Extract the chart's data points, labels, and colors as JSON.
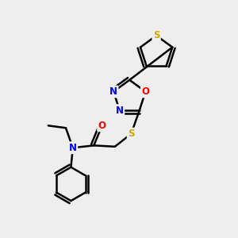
{
  "bg_color": "#eeeeee",
  "atom_colors": {
    "C": "#000000",
    "N": "#0000ff",
    "O": "#ff0000",
    "S": "#ccaa00"
  },
  "bond_color": "#000000",
  "bond_width": 1.8,
  "dbl_sep": 0.12,
  "font_size": 8.5
}
